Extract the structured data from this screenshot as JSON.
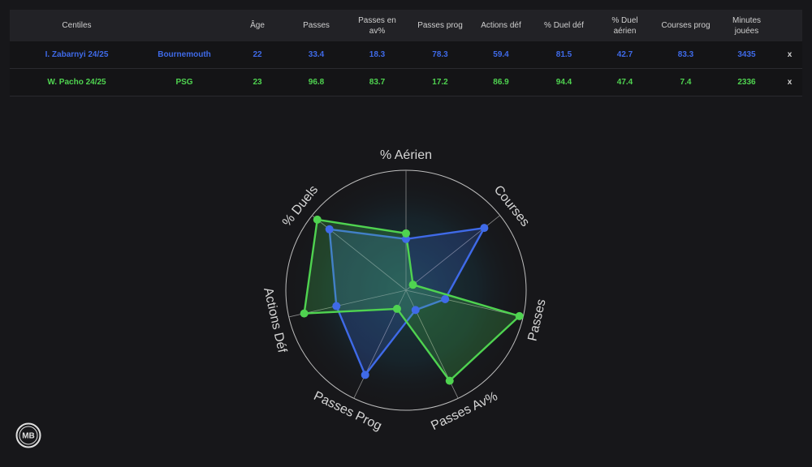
{
  "table": {
    "headers": [
      "Centiles",
      "",
      "Âge",
      "Passes",
      "Passes en av%",
      "Passes prog",
      "Actions déf",
      "% Duel déf",
      "% Duel aérien",
      "Courses prog",
      "Minutes jouées",
      ""
    ],
    "rows": [
      {
        "player": "I. Zabarnyi 24/25",
        "team": "Bournemouth",
        "values": [
          "22",
          "33.4",
          "18.3",
          "78.3",
          "59.4",
          "81.5",
          "42.7",
          "83.3",
          "3435"
        ],
        "remove": "x",
        "color": "#3f6ae8"
      },
      {
        "player": "W. Pacho 24/25",
        "team": "PSG",
        "values": [
          "23",
          "96.8",
          "83.7",
          "17.2",
          "86.9",
          "94.4",
          "47.4",
          "7.4",
          "2336"
        ],
        "remove": "x",
        "color": "#4fd350"
      }
    ]
  },
  "chart_data": {
    "type": "radar",
    "axes": [
      "% Aérien",
      "Courses",
      "Passes",
      "Passes Av%",
      "Passes Prog",
      "Actions Déf",
      "% Duels"
    ],
    "range": [
      0,
      100
    ],
    "series": [
      {
        "values": [
          42.7,
          83.3,
          33.4,
          18.3,
          78.3,
          59.4,
          81.5
        ],
        "color": "#3f6ae8"
      },
      {
        "values": [
          47.4,
          7.4,
          96.8,
          83.7,
          17.2,
          86.9,
          94.4
        ],
        "color": "#4fd350"
      }
    ]
  },
  "logo": {
    "text": "MB"
  }
}
